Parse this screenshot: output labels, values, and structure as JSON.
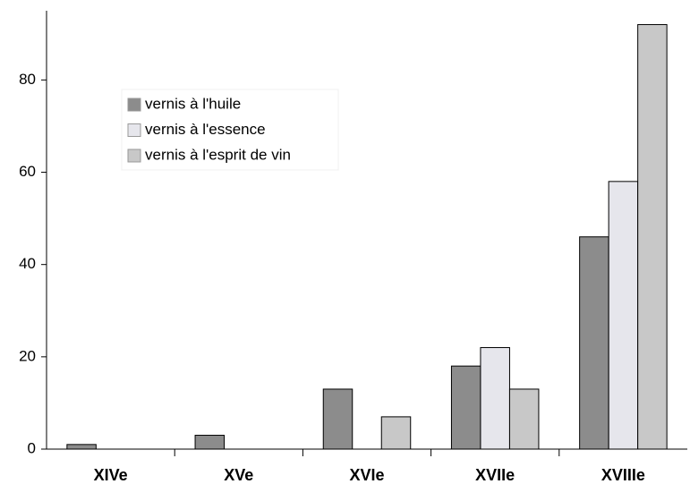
{
  "chart_data": {
    "type": "bar",
    "categories": [
      "XIVe",
      "XVe",
      "XVIe",
      "XVIIe",
      "XVIIIe"
    ],
    "series": [
      {
        "name": "vernis à l'huile",
        "color": "#8c8c8c",
        "values": [
          1,
          3,
          13,
          18,
          46
        ]
      },
      {
        "name": "vernis à l'essence",
        "color": "#e6e6ec",
        "values": [
          0,
          0,
          0,
          22,
          58
        ]
      },
      {
        "name": "vernis à l'esprit de vin",
        "color": "#c8c8c8",
        "values": [
          0,
          0,
          7,
          13,
          92
        ]
      }
    ],
    "ylim": [
      0,
      95
    ],
    "yticks": [
      0,
      20,
      40,
      60,
      80
    ],
    "grid": false,
    "legend": "upper left"
  }
}
